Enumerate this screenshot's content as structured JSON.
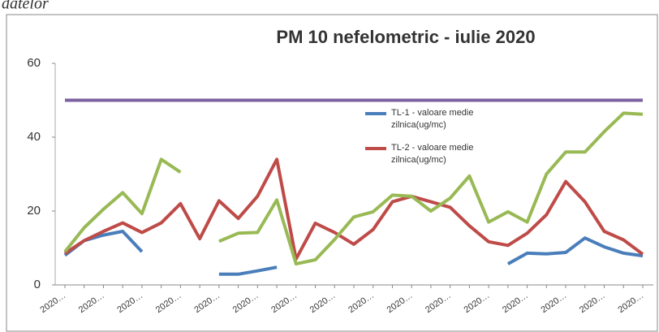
{
  "caption": "datelor",
  "chart_data": {
    "type": "line",
    "title": "PM 10 nefelometric - iulie  2020",
    "categories": [
      "2020…",
      null,
      "2020…",
      null,
      "2020…",
      null,
      "2020…",
      null,
      "2020…",
      null,
      "2020…",
      null,
      "2020…",
      null,
      "2020…",
      null,
      "2020…",
      null,
      "2020…",
      null,
      "2020…",
      null,
      "2020…",
      null,
      "2020…",
      null,
      "2020…",
      null,
      "2020…",
      null,
      "2020…"
    ],
    "ylim": [
      0,
      60
    ],
    "yticks": [
      0,
      20,
      40,
      60
    ],
    "grid": false,
    "series": [
      {
        "name": "TL-1 - valoare medie zilnica(ug/mc)",
        "color": "#4a7ebb",
        "legend": true,
        "values": [
          8,
          12,
          13.5,
          14.5,
          9,
          null,
          null,
          null,
          2.9,
          2.9,
          3.8,
          4.8,
          null,
          null,
          null,
          null,
          null,
          null,
          null,
          null,
          null,
          null,
          null,
          5.7,
          8.6,
          8.4,
          8.8,
          12.7,
          10.3,
          8.6,
          7.9
        ]
      },
      {
        "name": "TL-2 - valoare medie zilnica(ug/mc)",
        "color": "#be4b48",
        "legend": true,
        "values": [
          8.5,
          12,
          14.5,
          16.8,
          14.2,
          16.8,
          22,
          12.5,
          22.8,
          18,
          24,
          34,
          7,
          16.7,
          14.2,
          11,
          15,
          22.5,
          24,
          22.5,
          21,
          16,
          11.7,
          10.7,
          14,
          19,
          28,
          22.5,
          14.5,
          12.2,
          8.3
        ]
      },
      {
        "color": "#98b954",
        "values": [
          9,
          15.5,
          20.5,
          25,
          19.3,
          34,
          30.5,
          null,
          11.8,
          14,
          14.2,
          23,
          5.7,
          6.8,
          12.3,
          18.4,
          19.8,
          24.3,
          24,
          20,
          23.5,
          29.5,
          17,
          19.8,
          17,
          30,
          36,
          36,
          41.5,
          46.5,
          46.2
        ]
      },
      {
        "color": "#7d60a0",
        "values": [
          50,
          50,
          50,
          50,
          50,
          50,
          50,
          50,
          50,
          50,
          50,
          50,
          50,
          50,
          50,
          50,
          50,
          50,
          50,
          50,
          50,
          50,
          50,
          50,
          50,
          50,
          50,
          50,
          50,
          50,
          50
        ]
      }
    ]
  }
}
